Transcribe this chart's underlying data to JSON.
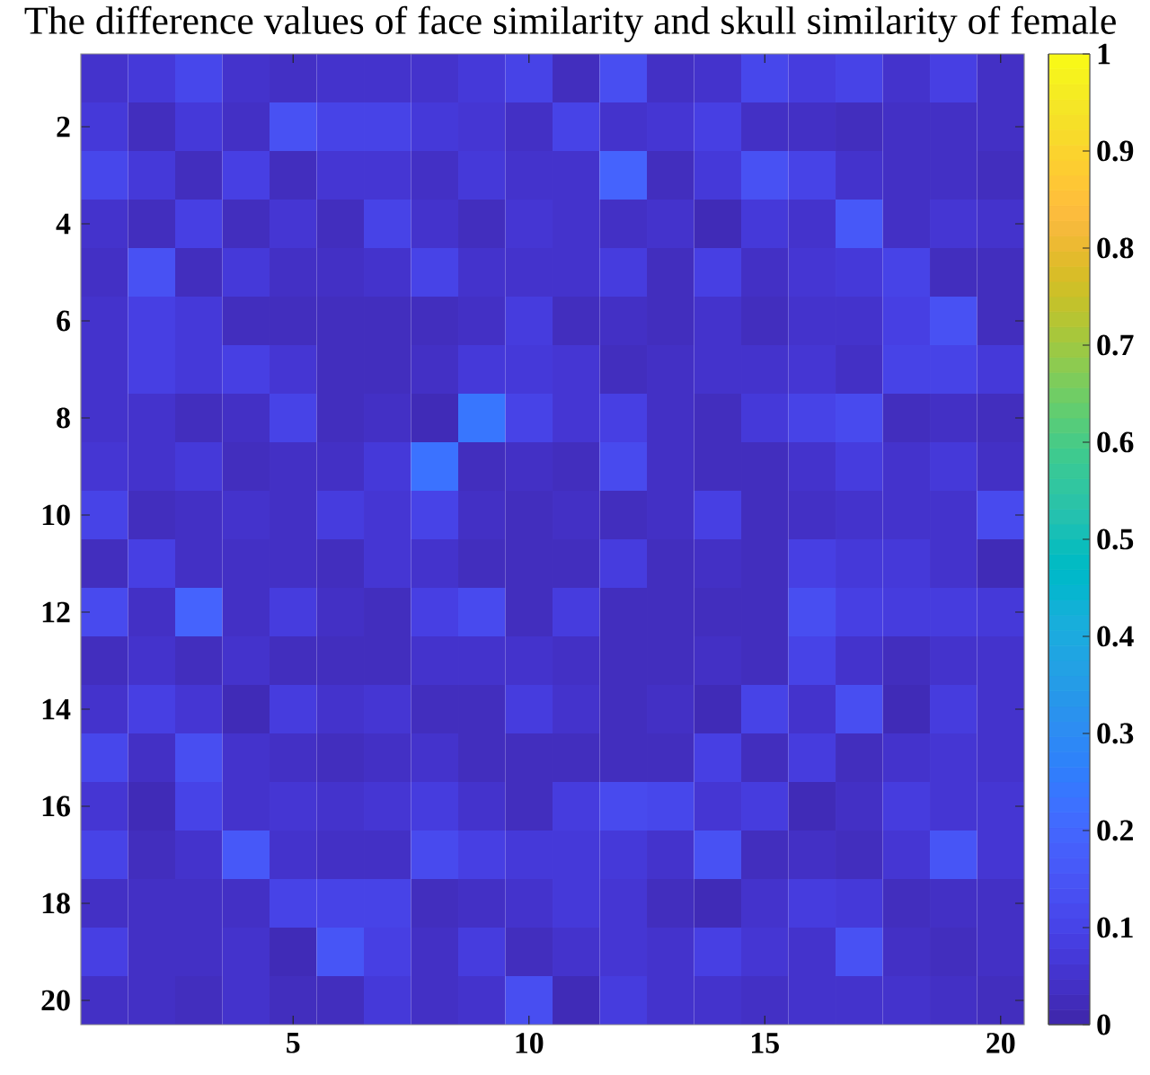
{
  "chart_data": {
    "type": "heatmap",
    "title": "The difference values of face similarity and skull similarity of female",
    "categories": [
      null,
      null,
      null,
      null,
      "5",
      null,
      null,
      null,
      null,
      "10",
      null,
      null,
      null,
      null,
      "15",
      null,
      null,
      null,
      null,
      "20"
    ],
    "y_categories": [
      null,
      "2",
      null,
      "4",
      null,
      "6",
      null,
      "8",
      null,
      "10",
      null,
      "12",
      null,
      "14",
      null,
      "16",
      null,
      "18",
      null,
      "20"
    ],
    "cells": [
      [
        0.05,
        0.07,
        0.11,
        0.05,
        0.04,
        0.05,
        0.05,
        0.05,
        0.07,
        0.1,
        0.03,
        0.13,
        0.04,
        0.05,
        0.11,
        0.08,
        0.1,
        0.05,
        0.09,
        0.04
      ],
      [
        0.07,
        0.03,
        0.07,
        0.04,
        0.14,
        0.1,
        0.1,
        0.07,
        0.06,
        0.04,
        0.1,
        0.05,
        0.06,
        0.09,
        0.04,
        0.04,
        0.03,
        0.04,
        0.04,
        0.04
      ],
      [
        0.11,
        0.07,
        0.03,
        0.09,
        0.03,
        0.06,
        0.06,
        0.04,
        0.07,
        0.05,
        0.05,
        0.19,
        0.03,
        0.07,
        0.14,
        0.1,
        0.05,
        0.04,
        0.04,
        0.03
      ],
      [
        0.05,
        0.03,
        0.09,
        0.03,
        0.06,
        0.03,
        0.1,
        0.05,
        0.03,
        0.06,
        0.05,
        0.04,
        0.05,
        0.02,
        0.07,
        0.05,
        0.16,
        0.04,
        0.06,
        0.05
      ],
      [
        0.04,
        0.14,
        0.03,
        0.07,
        0.04,
        0.04,
        0.05,
        0.1,
        0.05,
        0.05,
        0.05,
        0.08,
        0.03,
        0.09,
        0.04,
        0.06,
        0.07,
        0.1,
        0.03,
        0.03
      ],
      [
        0.05,
        0.09,
        0.07,
        0.03,
        0.03,
        0.03,
        0.03,
        0.03,
        0.04,
        0.08,
        0.03,
        0.04,
        0.03,
        0.05,
        0.03,
        0.05,
        0.05,
        0.09,
        0.14,
        0.03
      ],
      [
        0.05,
        0.09,
        0.07,
        0.09,
        0.06,
        0.03,
        0.03,
        0.04,
        0.07,
        0.07,
        0.06,
        0.03,
        0.04,
        0.05,
        0.05,
        0.06,
        0.04,
        0.1,
        0.1,
        0.07
      ],
      [
        0.05,
        0.05,
        0.03,
        0.04,
        0.1,
        0.03,
        0.04,
        0.02,
        0.24,
        0.1,
        0.06,
        0.09,
        0.04,
        0.03,
        0.07,
        0.1,
        0.12,
        0.03,
        0.04,
        0.03
      ],
      [
        0.06,
        0.05,
        0.07,
        0.03,
        0.04,
        0.04,
        0.07,
        0.23,
        0.03,
        0.04,
        0.03,
        0.12,
        0.04,
        0.03,
        0.03,
        0.05,
        0.08,
        0.05,
        0.07,
        0.04
      ],
      [
        0.1,
        0.03,
        0.04,
        0.05,
        0.04,
        0.08,
        0.06,
        0.1,
        0.04,
        0.03,
        0.04,
        0.03,
        0.04,
        0.09,
        0.03,
        0.04,
        0.05,
        0.05,
        0.05,
        0.12
      ],
      [
        0.03,
        0.09,
        0.04,
        0.04,
        0.04,
        0.03,
        0.06,
        0.05,
        0.03,
        0.03,
        0.03,
        0.08,
        0.03,
        0.04,
        0.03,
        0.09,
        0.07,
        0.07,
        0.05,
        0.02
      ],
      [
        0.12,
        0.04,
        0.19,
        0.04,
        0.08,
        0.04,
        0.03,
        0.09,
        0.12,
        0.03,
        0.08,
        0.03,
        0.03,
        0.03,
        0.03,
        0.13,
        0.09,
        0.08,
        0.08,
        0.07
      ],
      [
        0.03,
        0.05,
        0.03,
        0.05,
        0.03,
        0.03,
        0.03,
        0.05,
        0.05,
        0.05,
        0.04,
        0.03,
        0.03,
        0.04,
        0.03,
        0.1,
        0.05,
        0.03,
        0.05,
        0.05
      ],
      [
        0.05,
        0.09,
        0.06,
        0.02,
        0.08,
        0.05,
        0.06,
        0.03,
        0.03,
        0.08,
        0.05,
        0.03,
        0.04,
        0.02,
        0.1,
        0.05,
        0.13,
        0.02,
        0.08,
        0.05
      ],
      [
        0.11,
        0.04,
        0.13,
        0.05,
        0.04,
        0.03,
        0.04,
        0.05,
        0.03,
        0.03,
        0.03,
        0.03,
        0.03,
        0.09,
        0.03,
        0.08,
        0.03,
        0.05,
        0.06,
        0.05
      ],
      [
        0.06,
        0.02,
        0.1,
        0.05,
        0.06,
        0.05,
        0.06,
        0.08,
        0.05,
        0.03,
        0.08,
        0.12,
        0.11,
        0.06,
        0.08,
        0.02,
        0.04,
        0.08,
        0.06,
        0.06
      ],
      [
        0.1,
        0.03,
        0.05,
        0.16,
        0.05,
        0.04,
        0.04,
        0.12,
        0.09,
        0.07,
        0.07,
        0.07,
        0.05,
        0.14,
        0.03,
        0.04,
        0.03,
        0.06,
        0.15,
        0.06
      ],
      [
        0.04,
        0.04,
        0.04,
        0.04,
        0.1,
        0.1,
        0.1,
        0.03,
        0.04,
        0.05,
        0.07,
        0.06,
        0.03,
        0.02,
        0.05,
        0.08,
        0.07,
        0.03,
        0.04,
        0.04
      ],
      [
        0.09,
        0.04,
        0.04,
        0.05,
        0.02,
        0.15,
        0.09,
        0.04,
        0.08,
        0.03,
        0.05,
        0.06,
        0.05,
        0.09,
        0.06,
        0.05,
        0.14,
        0.04,
        0.03,
        0.04
      ],
      [
        0.04,
        0.04,
        0.03,
        0.05,
        0.03,
        0.03,
        0.07,
        0.04,
        0.05,
        0.13,
        0.02,
        0.08,
        0.05,
        0.05,
        0.04,
        0.05,
        0.05,
        0.05,
        0.04,
        0.03
      ]
    ],
    "clim": [
      0,
      1
    ],
    "cticks": [
      0,
      0.1,
      0.2,
      0.3,
      0.4,
      0.5,
      0.6,
      0.7,
      0.8,
      0.9,
      1
    ]
  }
}
